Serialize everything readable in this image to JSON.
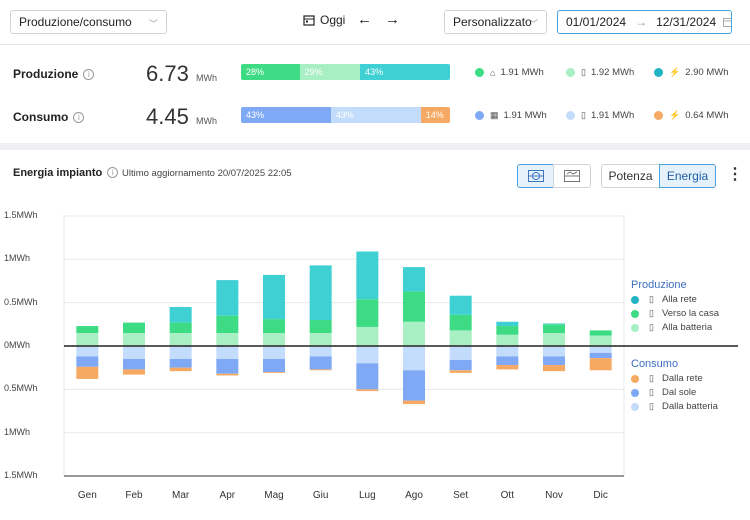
{
  "toolbar": {
    "view_select": "Produzione/consumo",
    "today_label": "Oggi",
    "period_select": "Personalizzato",
    "date_from": "01/01/2024",
    "date_arrow": "→",
    "date_to": "12/31/2024"
  },
  "summary": {
    "production": {
      "label": "Produzione",
      "value": "6.73",
      "unit": "MWh",
      "bar": [
        {
          "pct": "28%",
          "fraction": 0.28,
          "color": "#3ddc84"
        },
        {
          "pct": "29%",
          "fraction": 0.29,
          "color": "#a9efc4"
        },
        {
          "pct": "43%",
          "fraction": 0.43,
          "color": "#3fd0d4"
        }
      ],
      "legend": [
        {
          "value": "1.91 MWh",
          "color": "#3ddc84",
          "icon": "house-icon"
        },
        {
          "value": "1.92 MWh",
          "color": "#a9efc4",
          "icon": "battery-icon"
        },
        {
          "value": "2.90 MWh",
          "color": "#20b3c4",
          "icon": "grid-tower-icon"
        }
      ]
    },
    "consumption": {
      "label": "Consumo",
      "value": "4.45",
      "unit": "MWh",
      "bar": [
        {
          "pct": "43%",
          "fraction": 0.43,
          "color": "#7fa9f5"
        },
        {
          "pct": "43%",
          "fraction": 0.43,
          "color": "#c4dcfb"
        },
        {
          "pct": "14%",
          "fraction": 0.14,
          "color": "#f6a963"
        }
      ],
      "legend": [
        {
          "value": "1.91 MWh",
          "color": "#7fa9f5",
          "icon": "solar-panel-icon"
        },
        {
          "value": "1.91 MWh",
          "color": "#c4dcfb",
          "icon": "battery-icon"
        },
        {
          "value": "0.64 MWh",
          "color": "#f6a963",
          "icon": "grid-tower-icon"
        }
      ]
    }
  },
  "plant": {
    "title": "Energia impianto",
    "updated": "Ultimo aggiornamento 20/07/2025 22:05",
    "potenza_label": "Potenza",
    "energia_label": "Energia"
  },
  "legend_right": {
    "production_title": "Produzione",
    "production_items": [
      {
        "label": "Alla rete",
        "color": "#20b3c4"
      },
      {
        "label": "Verso la casa",
        "color": "#3ddc84"
      },
      {
        "label": "Alla batteria",
        "color": "#a9efc4"
      }
    ],
    "consumption_title": "Consumo",
    "consumption_items": [
      {
        "label": "Dalla rete",
        "color": "#f6a963"
      },
      {
        "label": "Dal sole",
        "color": "#7fa9f5"
      },
      {
        "label": "Dalla batteria",
        "color": "#c4dcfb"
      }
    ]
  },
  "chart_data": {
    "type": "bar",
    "stacked": true,
    "categories": [
      "Gen",
      "Feb",
      "Mar",
      "Apr",
      "Mag",
      "Giu",
      "Lug",
      "Ago",
      "Set",
      "Ott",
      "Nov",
      "Dic"
    ],
    "y_tick_labels": [
      "1.5MWh",
      "1MWh",
      "0.5MWh",
      "0MWh",
      "0.5MWh",
      "1MWh",
      "1.5MWh"
    ],
    "ylim": [
      -1.5,
      1.5
    ],
    "series": [
      {
        "name": "Alla batteria",
        "group": "Produzione",
        "color": "#a9efc4",
        "values": [
          0.15,
          0.15,
          0.15,
          0.15,
          0.15,
          0.15,
          0.22,
          0.28,
          0.18,
          0.13,
          0.15,
          0.12
        ]
      },
      {
        "name": "Verso la casa",
        "group": "Produzione",
        "color": "#3ddc84",
        "values": [
          0.08,
          0.12,
          0.12,
          0.2,
          0.16,
          0.15,
          0.32,
          0.35,
          0.18,
          0.1,
          0.1,
          0.06
        ]
      },
      {
        "name": "Alla rete",
        "group": "Produzione",
        "color": "#3fd0d4",
        "values": [
          0.0,
          0.0,
          0.18,
          0.41,
          0.51,
          0.63,
          0.55,
          0.28,
          0.22,
          0.05,
          0.01,
          0.0
        ]
      },
      {
        "name": "Dalla batteria",
        "group": "Consumo",
        "color": "#c4dcfb",
        "values": [
          -0.12,
          -0.15,
          -0.15,
          -0.15,
          -0.15,
          -0.12,
          -0.2,
          -0.28,
          -0.16,
          -0.12,
          -0.12,
          -0.08
        ]
      },
      {
        "name": "Dal sole",
        "group": "Consumo",
        "color": "#7fa9f5",
        "values": [
          -0.12,
          -0.12,
          -0.1,
          -0.17,
          -0.15,
          -0.15,
          -0.3,
          -0.35,
          -0.12,
          -0.1,
          -0.1,
          -0.06
        ]
      },
      {
        "name": "Dalla rete",
        "group": "Consumo",
        "color": "#f6a963",
        "values": [
          -0.14,
          -0.06,
          -0.04,
          -0.02,
          -0.01,
          -0.01,
          -0.02,
          -0.04,
          -0.03,
          -0.05,
          -0.07,
          -0.14
        ]
      }
    ],
    "grid": true
  }
}
